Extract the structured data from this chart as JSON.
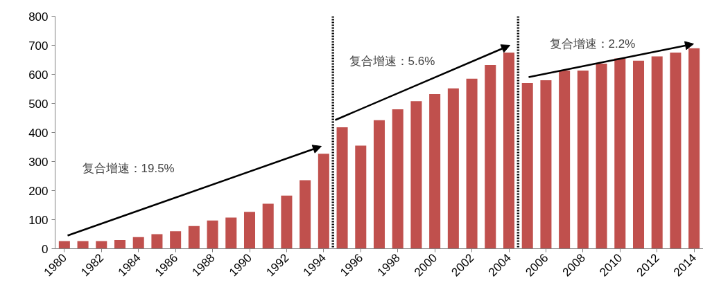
{
  "chart_data": {
    "type": "bar",
    "x": [
      1980,
      1981,
      1982,
      1983,
      1984,
      1985,
      1986,
      1987,
      1988,
      1989,
      1990,
      1991,
      1992,
      1993,
      1994,
      1995,
      1996,
      1997,
      1998,
      1999,
      2000,
      2001,
      2002,
      2003,
      2004,
      2005,
      2006,
      2007,
      2008,
      2009,
      2010,
      2011,
      2012,
      2013,
      2014
    ],
    "series": [
      {
        "color": "#c0504d",
        "values": [
          26,
          26,
          26,
          30,
          40,
          50,
          60,
          78,
          97,
          107,
          127,
          155,
          183,
          236,
          327,
          418,
          355,
          442,
          480,
          508,
          532,
          552,
          585,
          632,
          675,
          570,
          580,
          613,
          613,
          637,
          655,
          647,
          662,
          675,
          690
        ]
      }
    ],
    "xlim": [
      1979.5,
      2014.5
    ],
    "xticks": [
      1980,
      1982,
      1984,
      1986,
      1988,
      1990,
      1992,
      1994,
      1996,
      1998,
      2000,
      2002,
      2004,
      2006,
      2008,
      2010,
      2012,
      2014
    ],
    "ylim": [
      0,
      800
    ],
    "yticks": [
      0,
      100,
      200,
      300,
      400,
      500,
      600,
      700,
      800
    ],
    "ref_lines": [
      {
        "axis": "x",
        "value": 1994.5,
        "color": "#000000",
        "line_style": "dotted"
      },
      {
        "axis": "x",
        "value": 2004.5,
        "color": "#000000",
        "line_style": "dotted"
      }
    ],
    "annotations": [
      "复合增速：19.5%",
      "复合增速：5.6%",
      "复合增速：2.2%"
    ],
    "grid": false
  }
}
